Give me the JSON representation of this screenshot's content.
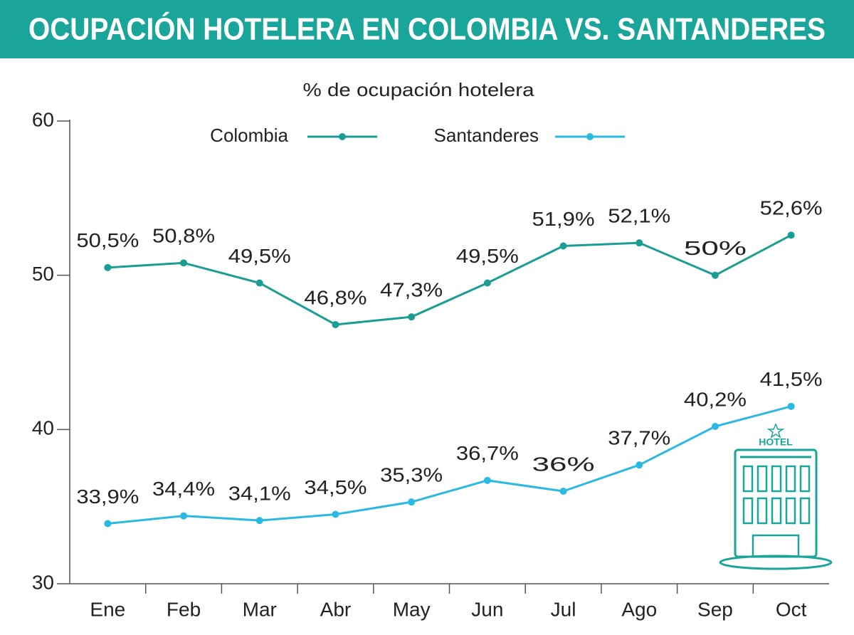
{
  "chart_data": {
    "type": "line",
    "title": "OCUPACIÓN HOTELERA EN COLOMBIA VS. SANTANDERES",
    "subtitle": "% de ocupación hotelera",
    "annotation": "HOTEL",
    "categories": [
      "Ene",
      "Feb",
      "Mar",
      "Abr",
      "May",
      "Jun",
      "Jul",
      "Ago",
      "Sep",
      "Oct"
    ],
    "series": [
      {
        "name": "Colombia",
        "color": "#1a9e94",
        "values": [
          50.5,
          50.8,
          49.5,
          46.8,
          47.3,
          49.5,
          51.9,
          52.1,
          50,
          52.6
        ],
        "value_labels": [
          "50,5%",
          "50,8%",
          "49,5%",
          "46,8%",
          "47,3%",
          "49,5%",
          "51,9%",
          "52,1%",
          "50%",
          "52,6%"
        ]
      },
      {
        "name": "Santanderes",
        "color": "#2bb9e2",
        "values": [
          33.9,
          34.4,
          34.1,
          34.5,
          35.3,
          36.7,
          36,
          37.7,
          40.2,
          41.5
        ],
        "value_labels": [
          "33,9%",
          "34,4%",
          "34,1%",
          "34,5%",
          "35,3%",
          "36,7%",
          "36%",
          "37,7%",
          "40,2%",
          "41,5%"
        ]
      }
    ],
    "ylim": [
      30,
      60
    ],
    "yticks": [
      30,
      40,
      50,
      60
    ],
    "legend": "top"
  }
}
